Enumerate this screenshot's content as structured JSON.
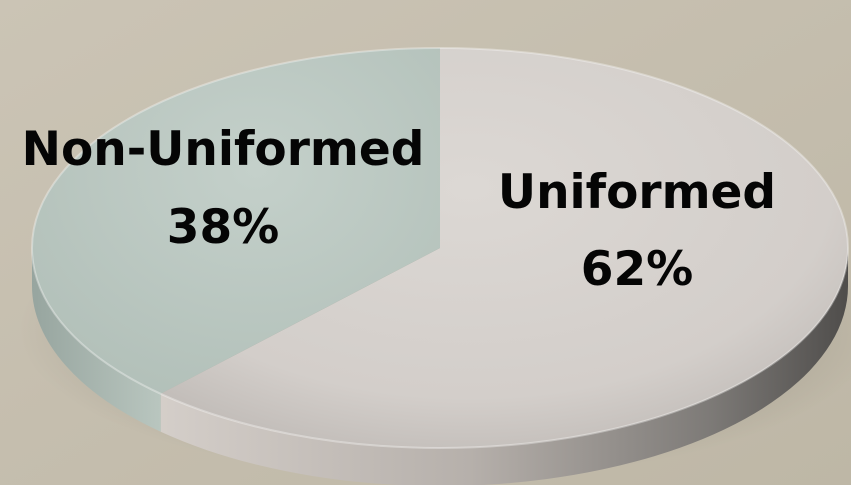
{
  "chart_data": {
    "type": "pie",
    "style": "3d",
    "categories": [
      "Uniformed",
      "Non-Uniformed"
    ],
    "values": [
      62,
      38
    ],
    "labels": [
      {
        "name": "Uniformed",
        "percent": "62%"
      },
      {
        "name": "Non-Uniformed",
        "percent": "38%"
      }
    ],
    "colors": {
      "background": "#c7c0b1",
      "Uniformed": "#d5d0cc",
      "Non-Uniformed": "#bfcbc5"
    }
  }
}
